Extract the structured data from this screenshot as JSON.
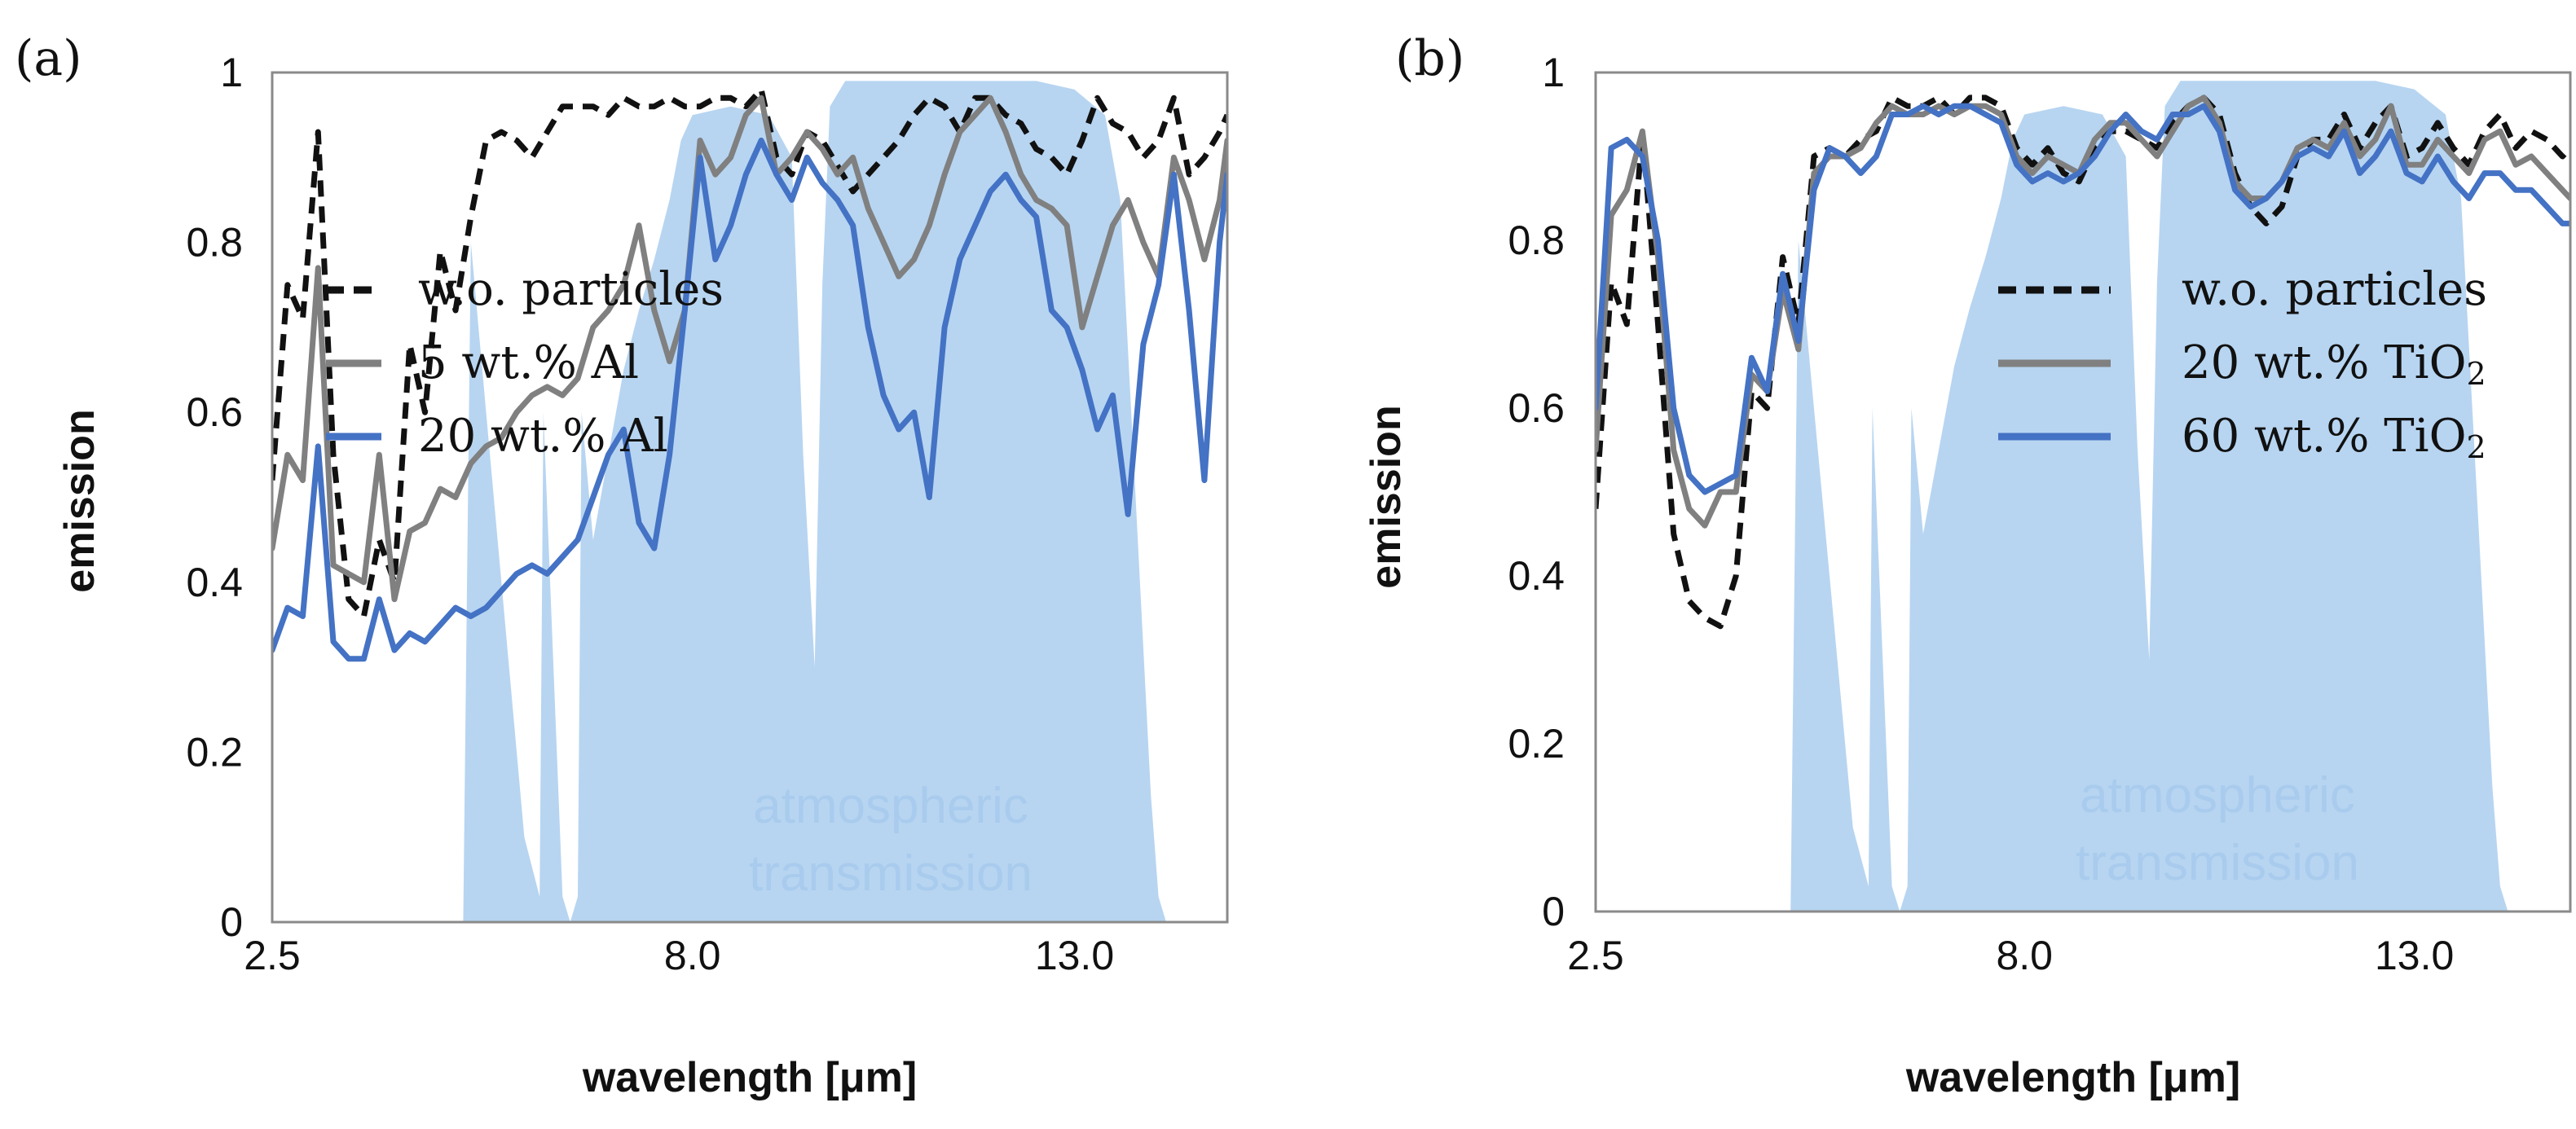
{
  "chart_data": [
    {
      "type": "line",
      "panel_label": "(a)",
      "xlabel": "wavelength [μm]",
      "ylabel": "emission",
      "xlim": [
        2.5,
        15.0
      ],
      "ylim": [
        0,
        1
      ],
      "xticks": [
        2.5,
        8.0,
        13.0
      ],
      "xtick_labels": [
        "2.5",
        "8.0",
        "13.0"
      ],
      "yticks": [
        0,
        0.2,
        0.4,
        0.6,
        0.8,
        1
      ],
      "ytick_labels": [
        "0",
        "0.2",
        "0.4",
        "0.6",
        "0.8",
        "1"
      ],
      "legend_position": "center-right",
      "annotation": [
        "atmospheric",
        "transmission"
      ],
      "background_area": {
        "name": "atmospheric transmission",
        "color": "#b7d5f1",
        "x": [
          2.5,
          5.0,
          5.1,
          5.35,
          5.6,
          5.8,
          6.0,
          6.05,
          6.3,
          6.4,
          6.5,
          6.55,
          6.7,
          6.9,
          7.1,
          7.3,
          7.5,
          7.7,
          7.85,
          8.0,
          8.5,
          9.0,
          9.3,
          9.45,
          9.6,
          9.7,
          9.8,
          10.0,
          10.5,
          11.0,
          11.5,
          12.0,
          12.5,
          13.0,
          13.4,
          13.6,
          13.8,
          14.0,
          14.1,
          14.2,
          15.0
        ],
        "values": [
          0,
          0,
          0.8,
          0.55,
          0.3,
          0.1,
          0.03,
          0.6,
          0.03,
          0.0,
          0.03,
          0.6,
          0.45,
          0.55,
          0.65,
          0.72,
          0.78,
          0.85,
          0.92,
          0.95,
          0.96,
          0.95,
          0.9,
          0.55,
          0.3,
          0.75,
          0.96,
          0.99,
          0.99,
          0.99,
          0.99,
          0.99,
          0.99,
          0.98,
          0.95,
          0.85,
          0.5,
          0.15,
          0.03,
          0.0,
          0.0
        ]
      },
      "series": [
        {
          "name": "w.o. particles",
          "color": "#111111",
          "dash": "dashed",
          "x": [
            2.5,
            2.7,
            2.9,
            3.1,
            3.3,
            3.5,
            3.7,
            3.9,
            4.1,
            4.3,
            4.5,
            4.7,
            4.9,
            5.1,
            5.3,
            5.5,
            5.7,
            5.9,
            6.1,
            6.3,
            6.5,
            6.7,
            6.9,
            7.1,
            7.3,
            7.5,
            7.7,
            7.9,
            8.1,
            8.3,
            8.5,
            8.7,
            8.9,
            9.1,
            9.3,
            9.5,
            9.7,
            9.9,
            10.1,
            10.3,
            10.5,
            10.7,
            10.9,
            11.1,
            11.3,
            11.5,
            11.7,
            11.9,
            12.1,
            12.3,
            12.5,
            12.7,
            12.9,
            13.1,
            13.3,
            13.5,
            13.7,
            13.9,
            14.1,
            14.3,
            14.5,
            14.7,
            14.9,
            15.0
          ],
          "values": [
            0.52,
            0.75,
            0.71,
            0.93,
            0.55,
            0.38,
            0.36,
            0.45,
            0.4,
            0.68,
            0.6,
            0.79,
            0.72,
            0.83,
            0.92,
            0.93,
            0.92,
            0.9,
            0.93,
            0.96,
            0.96,
            0.96,
            0.95,
            0.97,
            0.96,
            0.96,
            0.97,
            0.96,
            0.96,
            0.97,
            0.97,
            0.96,
            0.98,
            0.9,
            0.88,
            0.93,
            0.92,
            0.89,
            0.86,
            0.88,
            0.9,
            0.92,
            0.95,
            0.97,
            0.96,
            0.93,
            0.97,
            0.97,
            0.95,
            0.94,
            0.91,
            0.9,
            0.88,
            0.92,
            0.97,
            0.94,
            0.93,
            0.9,
            0.92,
            0.97,
            0.88,
            0.9,
            0.93,
            0.95
          ]
        },
        {
          "name": "5 wt.% Al",
          "color": "#808080",
          "dash": "solid",
          "x": [
            2.5,
            2.7,
            2.9,
            3.1,
            3.3,
            3.5,
            3.7,
            3.9,
            4.1,
            4.3,
            4.5,
            4.7,
            4.9,
            5.1,
            5.3,
            5.5,
            5.7,
            5.9,
            6.1,
            6.3,
            6.5,
            6.7,
            6.9,
            7.1,
            7.3,
            7.5,
            7.7,
            7.9,
            8.1,
            8.3,
            8.5,
            8.7,
            8.9,
            9.1,
            9.3,
            9.5,
            9.7,
            9.9,
            10.1,
            10.3,
            10.5,
            10.7,
            10.9,
            11.1,
            11.3,
            11.5,
            11.7,
            11.9,
            12.1,
            12.3,
            12.5,
            12.7,
            12.9,
            13.1,
            13.3,
            13.5,
            13.7,
            13.9,
            14.1,
            14.3,
            14.5,
            14.7,
            14.9,
            15.0
          ],
          "values": [
            0.44,
            0.55,
            0.52,
            0.77,
            0.42,
            0.41,
            0.4,
            0.55,
            0.38,
            0.46,
            0.47,
            0.51,
            0.5,
            0.54,
            0.56,
            0.57,
            0.6,
            0.62,
            0.63,
            0.62,
            0.64,
            0.7,
            0.72,
            0.75,
            0.82,
            0.72,
            0.66,
            0.72,
            0.92,
            0.88,
            0.9,
            0.95,
            0.97,
            0.88,
            0.9,
            0.93,
            0.91,
            0.88,
            0.9,
            0.84,
            0.8,
            0.76,
            0.78,
            0.82,
            0.88,
            0.93,
            0.95,
            0.97,
            0.93,
            0.88,
            0.85,
            0.84,
            0.82,
            0.7,
            0.76,
            0.82,
            0.85,
            0.8,
            0.76,
            0.9,
            0.85,
            0.78,
            0.85,
            0.92
          ]
        },
        {
          "name": "20 wt.% Al",
          "color": "#4472c4",
          "dash": "solid",
          "x": [
            2.5,
            2.7,
            2.9,
            3.1,
            3.3,
            3.5,
            3.7,
            3.9,
            4.1,
            4.3,
            4.5,
            4.7,
            4.9,
            5.1,
            5.3,
            5.5,
            5.7,
            5.9,
            6.1,
            6.3,
            6.5,
            6.7,
            6.9,
            7.1,
            7.3,
            7.5,
            7.7,
            7.9,
            8.1,
            8.3,
            8.5,
            8.7,
            8.9,
            9.1,
            9.3,
            9.5,
            9.7,
            9.9,
            10.1,
            10.3,
            10.5,
            10.7,
            10.9,
            11.1,
            11.3,
            11.5,
            11.7,
            11.9,
            12.1,
            12.3,
            12.5,
            12.7,
            12.9,
            13.1,
            13.3,
            13.5,
            13.7,
            13.9,
            14.1,
            14.3,
            14.5,
            14.7,
            14.9,
            15.0
          ],
          "values": [
            0.32,
            0.37,
            0.36,
            0.56,
            0.33,
            0.31,
            0.31,
            0.38,
            0.32,
            0.34,
            0.33,
            0.35,
            0.37,
            0.36,
            0.37,
            0.39,
            0.41,
            0.42,
            0.41,
            0.43,
            0.45,
            0.5,
            0.55,
            0.58,
            0.47,
            0.44,
            0.55,
            0.72,
            0.9,
            0.78,
            0.82,
            0.88,
            0.92,
            0.88,
            0.85,
            0.9,
            0.87,
            0.85,
            0.82,
            0.7,
            0.62,
            0.58,
            0.6,
            0.5,
            0.7,
            0.78,
            0.82,
            0.86,
            0.88,
            0.85,
            0.83,
            0.72,
            0.7,
            0.65,
            0.58,
            0.62,
            0.48,
            0.68,
            0.75,
            0.88,
            0.72,
            0.52,
            0.8,
            0.88
          ]
        }
      ]
    },
    {
      "type": "line",
      "panel_label": "(b)",
      "xlabel": "wavelength [μm]",
      "ylabel": "emission",
      "xlim": [
        2.5,
        15.0
      ],
      "ylim": [
        0,
        1
      ],
      "xticks": [
        2.5,
        8.0,
        13.0
      ],
      "xtick_labels": [
        "2.5",
        "8.0",
        "13.0"
      ],
      "yticks": [
        0,
        0.2,
        0.4,
        0.6,
        0.8,
        1
      ],
      "ytick_labels": [
        "0",
        "0.2",
        "0.4",
        "0.6",
        "0.8",
        "1"
      ],
      "legend_position": "center-right",
      "annotation": [
        "atmospheric",
        "transmission"
      ],
      "background_area": {
        "name": "atmospheric transmission",
        "color": "#b7d5f1",
        "x": [
          2.5,
          5.0,
          5.1,
          5.35,
          5.6,
          5.8,
          6.0,
          6.05,
          6.3,
          6.4,
          6.5,
          6.55,
          6.7,
          6.9,
          7.1,
          7.3,
          7.5,
          7.7,
          7.85,
          8.0,
          8.5,
          9.0,
          9.3,
          9.45,
          9.6,
          9.7,
          9.8,
          10.0,
          10.5,
          11.0,
          11.5,
          12.0,
          12.5,
          13.0,
          13.4,
          13.6,
          13.8,
          14.0,
          14.1,
          14.2,
          15.0
        ],
        "values": [
          0,
          0,
          0.8,
          0.55,
          0.3,
          0.1,
          0.03,
          0.6,
          0.03,
          0.0,
          0.03,
          0.6,
          0.45,
          0.55,
          0.65,
          0.72,
          0.78,
          0.85,
          0.92,
          0.95,
          0.96,
          0.95,
          0.9,
          0.55,
          0.3,
          0.75,
          0.96,
          0.99,
          0.99,
          0.99,
          0.99,
          0.99,
          0.99,
          0.98,
          0.95,
          0.85,
          0.5,
          0.15,
          0.03,
          0.0,
          0.0
        ]
      },
      "series": [
        {
          "name": "w.o. particles",
          "color": "#111111",
          "dash": "dashed",
          "x": [
            2.5,
            2.7,
            2.9,
            3.1,
            3.3,
            3.5,
            3.7,
            3.9,
            4.1,
            4.3,
            4.5,
            4.7,
            4.9,
            5.1,
            5.3,
            5.5,
            5.7,
            5.9,
            6.1,
            6.3,
            6.5,
            6.7,
            6.9,
            7.1,
            7.3,
            7.5,
            7.7,
            7.9,
            8.1,
            8.3,
            8.5,
            8.7,
            8.9,
            9.1,
            9.3,
            9.5,
            9.7,
            9.9,
            10.1,
            10.3,
            10.5,
            10.7,
            10.9,
            11.1,
            11.3,
            11.5,
            11.7,
            11.9,
            12.1,
            12.3,
            12.5,
            12.7,
            12.9,
            13.1,
            13.3,
            13.5,
            13.7,
            13.9,
            14.1,
            14.3,
            14.5,
            14.7,
            14.9,
            15.0
          ],
          "values": [
            0.48,
            0.75,
            0.7,
            0.93,
            0.7,
            0.45,
            0.37,
            0.35,
            0.34,
            0.4,
            0.62,
            0.6,
            0.78,
            0.7,
            0.9,
            0.91,
            0.9,
            0.92,
            0.93,
            0.97,
            0.96,
            0.96,
            0.97,
            0.95,
            0.97,
            0.97,
            0.96,
            0.91,
            0.89,
            0.91,
            0.88,
            0.87,
            0.91,
            0.93,
            0.93,
            0.92,
            0.91,
            0.94,
            0.96,
            0.97,
            0.95,
            0.88,
            0.84,
            0.82,
            0.84,
            0.9,
            0.92,
            0.92,
            0.95,
            0.91,
            0.94,
            0.96,
            0.9,
            0.91,
            0.94,
            0.91,
            0.89,
            0.93,
            0.95,
            0.91,
            0.93,
            0.92,
            0.9,
            0.91
          ]
        },
        {
          "name": "20 wt.% TiO2",
          "color": "#808080",
          "dash": "solid",
          "x": [
            2.5,
            2.7,
            2.9,
            3.1,
            3.3,
            3.5,
            3.7,
            3.9,
            4.1,
            4.3,
            4.5,
            4.7,
            4.9,
            5.1,
            5.3,
            5.5,
            5.7,
            5.9,
            6.1,
            6.3,
            6.5,
            6.7,
            6.9,
            7.1,
            7.3,
            7.5,
            7.7,
            7.9,
            8.1,
            8.3,
            8.5,
            8.7,
            8.9,
            9.1,
            9.3,
            9.5,
            9.7,
            9.9,
            10.1,
            10.3,
            10.5,
            10.7,
            10.9,
            11.1,
            11.3,
            11.5,
            11.7,
            11.9,
            12.1,
            12.3,
            12.5,
            12.7,
            12.9,
            13.1,
            13.3,
            13.5,
            13.7,
            13.9,
            14.1,
            14.3,
            14.5,
            14.7,
            14.9,
            15.0
          ],
          "values": [
            0.55,
            0.83,
            0.86,
            0.93,
            0.78,
            0.55,
            0.48,
            0.46,
            0.5,
            0.5,
            0.64,
            0.62,
            0.74,
            0.67,
            0.88,
            0.9,
            0.9,
            0.91,
            0.94,
            0.96,
            0.95,
            0.95,
            0.96,
            0.95,
            0.96,
            0.96,
            0.95,
            0.9,
            0.88,
            0.9,
            0.89,
            0.88,
            0.92,
            0.94,
            0.94,
            0.92,
            0.9,
            0.93,
            0.96,
            0.97,
            0.94,
            0.87,
            0.85,
            0.85,
            0.87,
            0.91,
            0.92,
            0.91,
            0.94,
            0.9,
            0.92,
            0.96,
            0.89,
            0.89,
            0.92,
            0.9,
            0.88,
            0.92,
            0.93,
            0.89,
            0.9,
            0.88,
            0.86,
            0.85
          ]
        },
        {
          "name": "60 wt.% TiO2",
          "color": "#4472c4",
          "dash": "solid",
          "x": [
            2.5,
            2.7,
            2.9,
            3.1,
            3.3,
            3.5,
            3.7,
            3.9,
            4.1,
            4.3,
            4.5,
            4.7,
            4.9,
            5.1,
            5.3,
            5.5,
            5.7,
            5.9,
            6.1,
            6.3,
            6.5,
            6.7,
            6.9,
            7.1,
            7.3,
            7.5,
            7.7,
            7.9,
            8.1,
            8.3,
            8.5,
            8.7,
            8.9,
            9.1,
            9.3,
            9.5,
            9.7,
            9.9,
            10.1,
            10.3,
            10.5,
            10.7,
            10.9,
            11.1,
            11.3,
            11.5,
            11.7,
            11.9,
            12.1,
            12.3,
            12.5,
            12.7,
            12.9,
            13.1,
            13.3,
            13.5,
            13.7,
            13.9,
            14.1,
            14.3,
            14.5,
            14.7,
            14.9,
            15.0
          ],
          "values": [
            0.6,
            0.91,
            0.92,
            0.9,
            0.8,
            0.6,
            0.52,
            0.5,
            0.51,
            0.52,
            0.66,
            0.62,
            0.76,
            0.68,
            0.86,
            0.91,
            0.9,
            0.88,
            0.9,
            0.95,
            0.95,
            0.96,
            0.95,
            0.96,
            0.96,
            0.95,
            0.94,
            0.89,
            0.87,
            0.88,
            0.87,
            0.88,
            0.9,
            0.93,
            0.95,
            0.93,
            0.92,
            0.95,
            0.95,
            0.96,
            0.93,
            0.86,
            0.84,
            0.85,
            0.87,
            0.9,
            0.91,
            0.9,
            0.93,
            0.88,
            0.9,
            0.93,
            0.88,
            0.87,
            0.9,
            0.87,
            0.85,
            0.88,
            0.88,
            0.86,
            0.86,
            0.84,
            0.82,
            0.82
          ]
        }
      ]
    }
  ]
}
